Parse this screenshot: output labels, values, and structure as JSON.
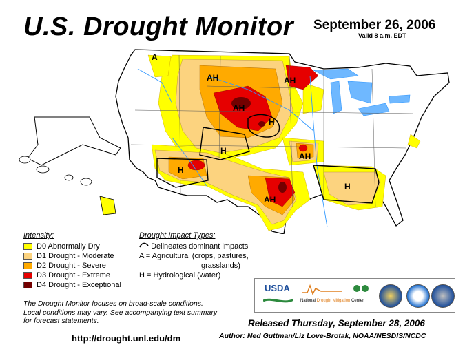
{
  "header": {
    "title": "U.S. Drought Monitor",
    "date": "September 26, 2006",
    "valid": "Valid 8 a.m. EDT"
  },
  "map_labels": {
    "montana_ah": "AH",
    "minnesota_ah": "AH",
    "dakota_ah": "AH",
    "nebraska_h": "H",
    "colorado_h": "H",
    "arizona_h": "H",
    "missouri_ah": "AH",
    "texas_ah": "AH",
    "southeast_h": "H",
    "pacific_nw_a": "A"
  },
  "legend": {
    "heading": "Intensity:",
    "items": [
      {
        "label": "D0 Abnormally Dry",
        "color": "#ffff00"
      },
      {
        "label": "D1 Drought - Moderate",
        "color": "#fcd37f"
      },
      {
        "label": "D2 Drought - Severe",
        "color": "#ffaa00"
      },
      {
        "label": "D3 Drought - Extreme",
        "color": "#e60000"
      },
      {
        "label": "D4 Drought - Exceptional",
        "color": "#730000"
      }
    ]
  },
  "impact": {
    "heading": "Drought Impact Types:",
    "delineates": "Delineates dominant impacts",
    "agricultural_1": "A = Agricultural (crops, pastures,",
    "agricultural_2": "grasslands)",
    "hydrological": "H = Hydrological (water)"
  },
  "note": {
    "line1": "The Drought Monitor focuses on broad-scale conditions.",
    "line2": "Local conditions may vary. See accompanying text summary",
    "line3": "for forecast statements."
  },
  "footer": {
    "url": "http://drought.unl.edu/dm",
    "released": "Released Thursday, September 28, 2006",
    "author": "Author: Ned Guttman/Liz Love-Brotak, NOAA/NESDIS/NCDC"
  },
  "logos": {
    "usda": "USDA",
    "ndmc_a": "National",
    "ndmc_b": "Drought Mitigation",
    "ndmc_c": "Center"
  },
  "colors": {
    "d0": "#ffff00",
    "d1": "#fcd37f",
    "d2": "#ffaa00",
    "d3": "#e60000",
    "d4": "#730000",
    "water": "#3399ff",
    "lakes": "#99ccff"
  }
}
